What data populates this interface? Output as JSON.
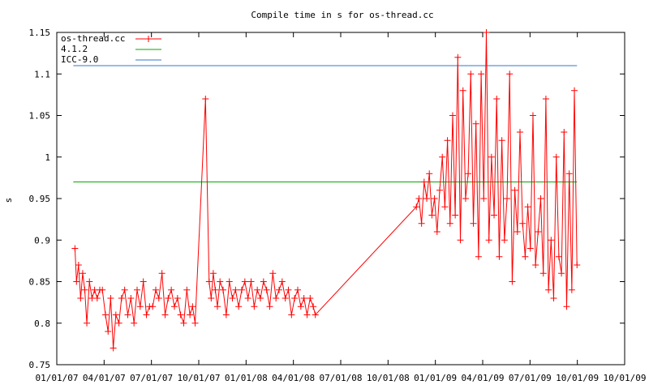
{
  "chart_data": {
    "type": "line",
    "title": "Compile time in s for os-thread.cc",
    "xlabel": "",
    "ylabel": "s",
    "x_range": [
      "2007-01-01",
      "2009-10-01"
    ],
    "xlim": [
      "2007-01-01",
      "2010-01-01"
    ],
    "ylim": [
      0.75,
      1.15
    ],
    "x_ticks": [
      "01/01/07",
      "04/01/07",
      "07/01/07",
      "10/01/07",
      "01/01/08",
      "04/01/08",
      "07/01/08",
      "10/01/08",
      "01/01/09",
      "04/01/09",
      "07/01/09",
      "10/01/09"
    ],
    "x_tick_labels": [
      "01/01/07",
      "04/01/07",
      "07/01/07",
      "10/01/07",
      "01/01/08",
      "04/01/08",
      "07/01/08",
      "10/01/08",
      "01/01/09",
      "04/01/09",
      "07/01/09",
      "10/01/09"
    ],
    "last_tick_label": "10/01/09",
    "y_ticks": [
      0.75,
      0.8,
      0.85,
      0.9,
      0.95,
      1,
      1.05,
      1.1,
      1.15
    ],
    "y_tick_labels": [
      "0.75",
      "0.8",
      "0.85",
      "0.9",
      "0.95",
      "1",
      "1.05",
      "1.1",
      "1.15"
    ],
    "grid": false,
    "legend_position": "top-left",
    "series": [
      {
        "name": "os-thread.cc",
        "color": "#ff0000",
        "marker": "plus",
        "x": [
          "2007-02-05",
          "2007-02-08",
          "2007-02-12",
          "2007-02-16",
          "2007-02-20",
          "2007-02-24",
          "2007-02-28",
          "2007-03-05",
          "2007-03-10",
          "2007-03-15",
          "2007-03-20",
          "2007-03-25",
          "2007-03-30",
          "2007-04-05",
          "2007-04-10",
          "2007-04-15",
          "2007-04-20",
          "2007-04-25",
          "2007-05-01",
          "2007-05-06",
          "2007-05-12",
          "2007-05-18",
          "2007-05-24",
          "2007-05-30",
          "2007-06-05",
          "2007-06-11",
          "2007-06-17",
          "2007-06-23",
          "2007-06-29",
          "2007-07-05",
          "2007-07-11",
          "2007-07-17",
          "2007-07-23",
          "2007-07-29",
          "2007-08-04",
          "2007-08-10",
          "2007-08-16",
          "2007-08-22",
          "2007-08-28",
          "2007-09-03",
          "2007-09-09",
          "2007-09-15",
          "2007-09-20",
          "2007-09-25",
          "2007-10-15",
          "2007-10-22",
          "2007-10-26",
          "2007-10-30",
          "2007-11-03",
          "2007-11-07",
          "2007-11-12",
          "2007-11-18",
          "2007-11-24",
          "2007-11-30",
          "2007-12-06",
          "2007-12-12",
          "2007-12-18",
          "2007-12-24",
          "2007-12-30",
          "2008-01-05",
          "2008-01-11",
          "2008-01-17",
          "2008-01-23",
          "2008-01-29",
          "2008-02-04",
          "2008-02-10",
          "2008-02-16",
          "2008-02-22",
          "2008-02-28",
          "2008-03-05",
          "2008-03-11",
          "2008-03-17",
          "2008-03-23",
          "2008-03-29",
          "2008-04-04",
          "2008-04-10",
          "2008-04-16",
          "2008-04-22",
          "2008-04-28",
          "2008-05-04",
          "2008-05-10",
          "2008-05-14",
          "2008-11-25",
          "2008-11-30",
          "2008-12-05",
          "2008-12-10",
          "2008-12-15",
          "2008-12-20",
          "2008-12-25",
          "2008-12-30",
          "2009-01-04",
          "2009-01-09",
          "2009-01-14",
          "2009-01-19",
          "2009-01-24",
          "2009-01-29",
          "2009-02-03",
          "2009-02-08",
          "2009-02-13",
          "2009-02-18",
          "2009-02-23",
          "2009-02-28",
          "2009-03-05",
          "2009-03-10",
          "2009-03-15",
          "2009-03-20",
          "2009-03-25",
          "2009-03-30",
          "2009-04-04",
          "2009-04-09",
          "2009-04-14",
          "2009-04-19",
          "2009-04-24",
          "2009-04-29",
          "2009-05-04",
          "2009-05-09",
          "2009-05-14",
          "2009-05-19",
          "2009-05-24",
          "2009-05-29",
          "2009-06-03",
          "2009-06-08",
          "2009-06-13",
          "2009-06-18",
          "2009-06-23",
          "2009-06-28",
          "2009-07-03",
          "2009-07-08",
          "2009-07-13",
          "2009-07-18",
          "2009-07-23",
          "2009-07-28",
          "2009-08-02",
          "2009-08-07",
          "2009-08-12",
          "2009-08-17",
          "2009-08-22",
          "2009-08-27",
          "2009-09-01",
          "2009-09-06",
          "2009-09-11",
          "2009-09-16",
          "2009-09-21",
          "2009-09-26",
          "2009-10-01"
        ],
        "values": [
          0.89,
          0.85,
          0.87,
          0.83,
          0.86,
          0.84,
          0.8,
          0.85,
          0.83,
          0.84,
          0.83,
          0.84,
          0.84,
          0.81,
          0.79,
          0.83,
          0.77,
          0.81,
          0.8,
          0.83,
          0.84,
          0.81,
          0.83,
          0.8,
          0.84,
          0.82,
          0.85,
          0.81,
          0.82,
          0.82,
          0.84,
          0.83,
          0.86,
          0.81,
          0.83,
          0.84,
          0.82,
          0.83,
          0.81,
          0.8,
          0.84,
          0.81,
          0.82,
          0.8,
          1.07,
          0.85,
          0.83,
          0.86,
          0.84,
          0.82,
          0.85,
          0.84,
          0.81,
          0.85,
          0.83,
          0.84,
          0.82,
          0.84,
          0.85,
          0.83,
          0.85,
          0.82,
          0.84,
          0.83,
          0.85,
          0.84,
          0.82,
          0.86,
          0.83,
          0.84,
          0.85,
          0.83,
          0.84,
          0.81,
          0.83,
          0.84,
          0.82,
          0.83,
          0.81,
          0.83,
          0.82,
          0.81,
          0.94,
          0.95,
          0.92,
          0.97,
          0.95,
          0.98,
          0.93,
          0.95,
          0.91,
          0.96,
          1.0,
          0.94,
          1.02,
          0.92,
          1.05,
          0.93,
          1.12,
          0.9,
          1.08,
          0.95,
          0.98,
          1.1,
          0.92,
          1.04,
          0.88,
          1.1,
          0.95,
          1.15,
          0.9,
          1.0,
          0.93,
          1.07,
          0.88,
          1.02,
          0.9,
          0.95,
          1.1,
          0.85,
          0.96,
          0.91,
          1.03,
          0.92,
          0.88,
          0.94,
          0.89,
          1.05,
          0.87,
          0.91,
          0.95,
          0.86,
          1.07,
          0.84,
          0.9,
          0.83,
          1.0,
          0.88,
          0.86,
          1.03,
          0.82,
          0.98,
          0.84,
          1.08,
          0.87
        ]
      },
      {
        "name": "4.1.2",
        "color": "#00aa00",
        "value": 0.97
      },
      {
        "name": "ICC-9.0",
        "color": "#3377cc",
        "value": 1.11
      }
    ]
  }
}
